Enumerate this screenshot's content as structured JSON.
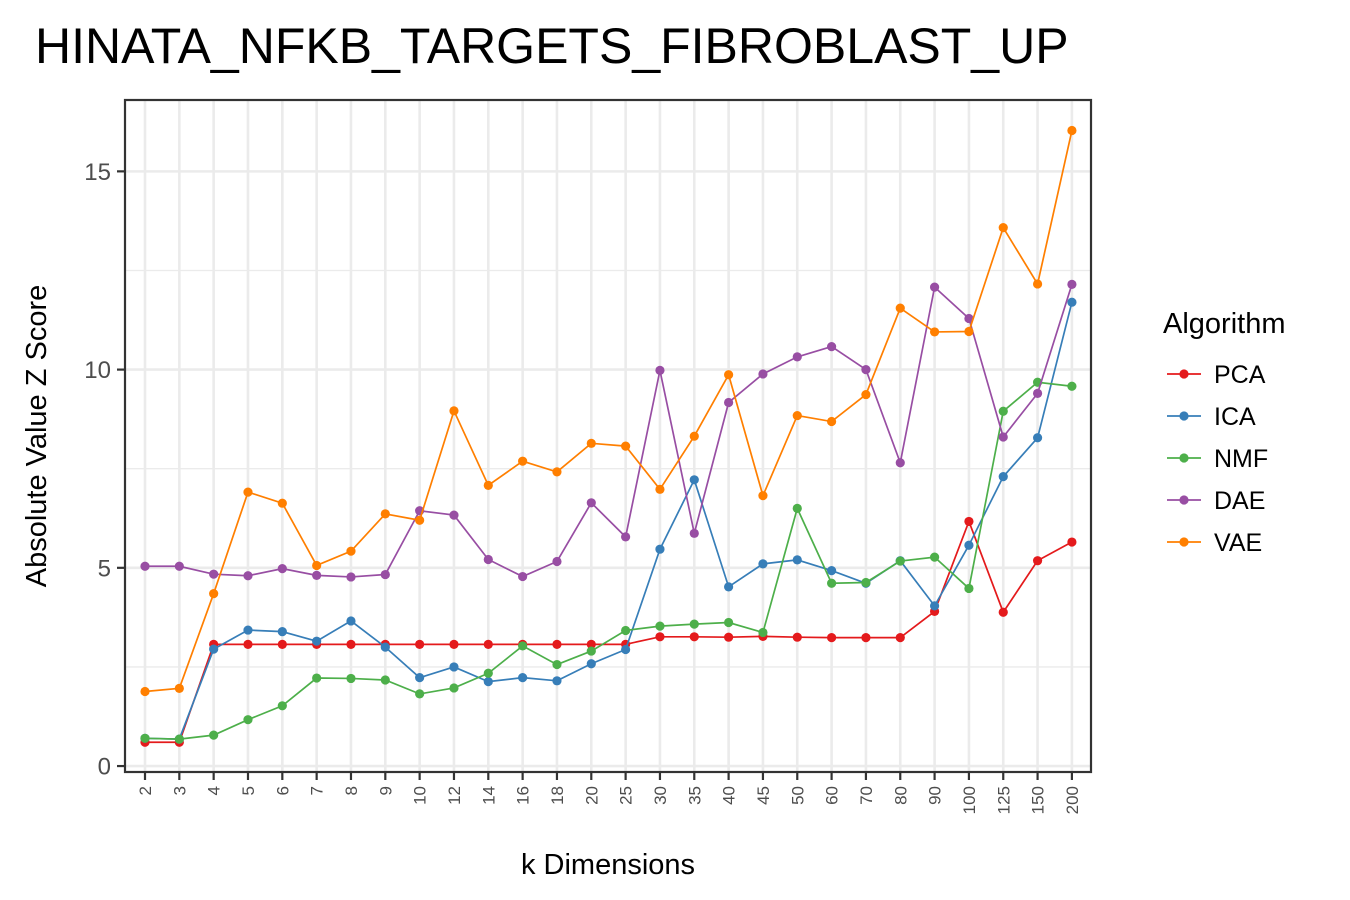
{
  "chart_data": {
    "type": "line",
    "title": "HINATA_NFKB_TARGETS_FIBROBLAST_UP",
    "xlabel": "k Dimensions",
    "ylabel": "Absolute Value Z Score",
    "categories": [
      "2",
      "3",
      "4",
      "5",
      "6",
      "7",
      "8",
      "9",
      "10",
      "12",
      "14",
      "16",
      "18",
      "20",
      "25",
      "30",
      "35",
      "40",
      "45",
      "50",
      "60",
      "70",
      "80",
      "90",
      "100",
      "125",
      "150",
      "200"
    ],
    "y_ticks": [
      0,
      5,
      10,
      15
    ],
    "ylim": [
      -0.15,
      16.8
    ],
    "grid": true,
    "legend": {
      "title": "Algorithm",
      "position": "right"
    },
    "series": [
      {
        "name": "PCA",
        "color": "#E41A1C",
        "values": [
          0.6,
          0.6,
          3.07,
          3.07,
          3.07,
          3.07,
          3.07,
          3.07,
          3.07,
          3.07,
          3.07,
          3.07,
          3.07,
          3.07,
          3.07,
          3.26,
          3.26,
          3.25,
          3.27,
          3.25,
          3.24,
          3.24,
          3.24,
          3.9,
          6.17,
          3.88,
          5.18,
          5.65
        ]
      },
      {
        "name": "ICA",
        "color": "#377EB8",
        "values": [
          0.7,
          0.68,
          2.95,
          3.43,
          3.39,
          3.15,
          3.66,
          3.0,
          2.23,
          2.5,
          2.13,
          2.23,
          2.15,
          2.58,
          2.94,
          5.47,
          7.22,
          4.52,
          5.1,
          5.2,
          4.93,
          4.61,
          5.18,
          4.04,
          5.57,
          7.3,
          8.28,
          11.7
        ]
      },
      {
        "name": "NMF",
        "color": "#4DAF4A",
        "values": [
          0.7,
          0.68,
          0.78,
          1.17,
          1.52,
          2.22,
          2.21,
          2.17,
          1.82,
          1.97,
          2.34,
          3.03,
          2.56,
          2.9,
          3.42,
          3.53,
          3.58,
          3.62,
          3.37,
          6.5,
          4.61,
          4.63,
          5.17,
          5.27,
          4.48,
          8.95,
          9.68,
          9.58
        ]
      },
      {
        "name": "DAE",
        "color": "#984EA3",
        "values": [
          5.04,
          5.04,
          4.84,
          4.8,
          4.98,
          4.81,
          4.77,
          4.83,
          6.44,
          6.33,
          5.21,
          4.78,
          5.16,
          6.64,
          5.78,
          9.98,
          5.87,
          9.17,
          9.89,
          10.32,
          10.58,
          10.0,
          7.65,
          12.08,
          11.29,
          8.3,
          9.4,
          12.15
        ]
      },
      {
        "name": "VAE",
        "color": "#FF7F00",
        "values": [
          1.88,
          1.96,
          4.35,
          6.91,
          6.63,
          5.06,
          5.42,
          6.36,
          6.2,
          8.96,
          7.08,
          7.69,
          7.42,
          8.14,
          8.07,
          6.98,
          8.32,
          9.87,
          6.82,
          8.84,
          8.69,
          9.37,
          11.55,
          10.95,
          10.96,
          13.58,
          12.16,
          16.03
        ]
      }
    ]
  }
}
